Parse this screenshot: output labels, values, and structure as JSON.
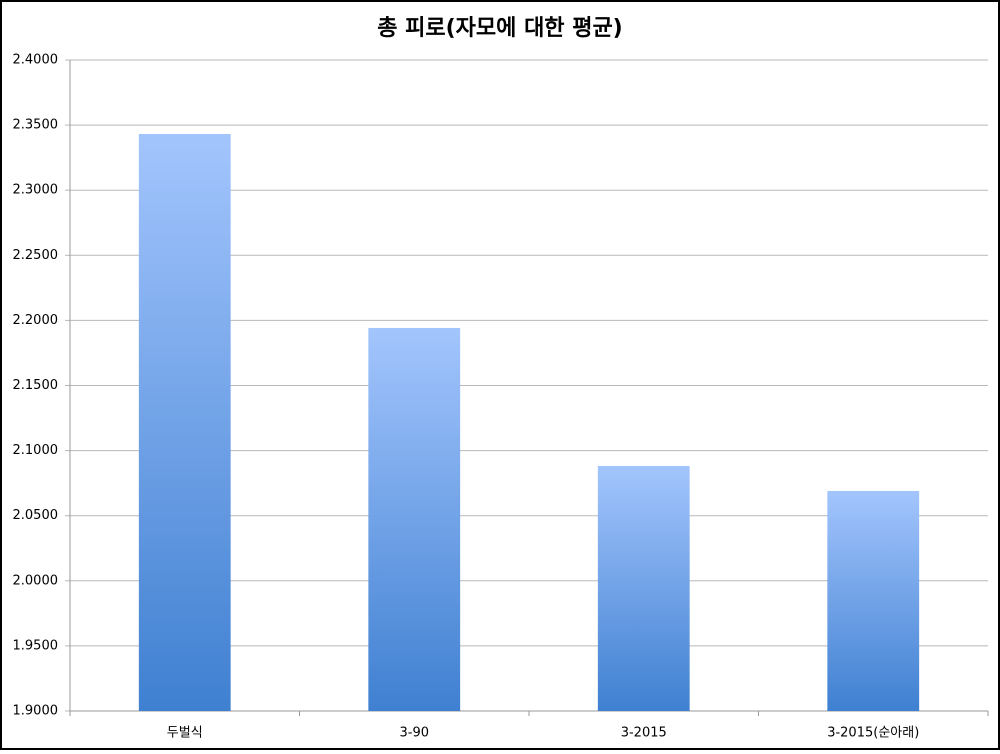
{
  "chart_data": {
    "type": "bar",
    "title": "총 피로(자모에 대한 평균)",
    "categories": [
      "두벌식",
      "3-90",
      "3-2015",
      "3-2015(순아래)"
    ],
    "values": [
      2.3432,
      2.1942,
      2.0882,
      2.069
    ],
    "gradient": [
      "#a3c5fd",
      "#3f80d1"
    ],
    "ylim": [
      1.9,
      2.4
    ],
    "yticks": [
      {
        "value": 1.9,
        "label": "1.9000"
      },
      {
        "value": 1.95,
        "label": "1.9500"
      },
      {
        "value": 2.0,
        "label": "2.0000"
      },
      {
        "value": 2.05,
        "label": "2.0500"
      },
      {
        "value": 2.1,
        "label": "2.1000"
      },
      {
        "value": 2.15,
        "label": "2.1500"
      },
      {
        "value": 2.2,
        "label": "2.2000"
      },
      {
        "value": 2.25,
        "label": "2.2500"
      },
      {
        "value": 2.3,
        "label": "2.3000"
      },
      {
        "value": 2.35,
        "label": "2.3500"
      },
      {
        "value": 2.4,
        "label": "2.4000"
      }
    ],
    "grid": true
  }
}
